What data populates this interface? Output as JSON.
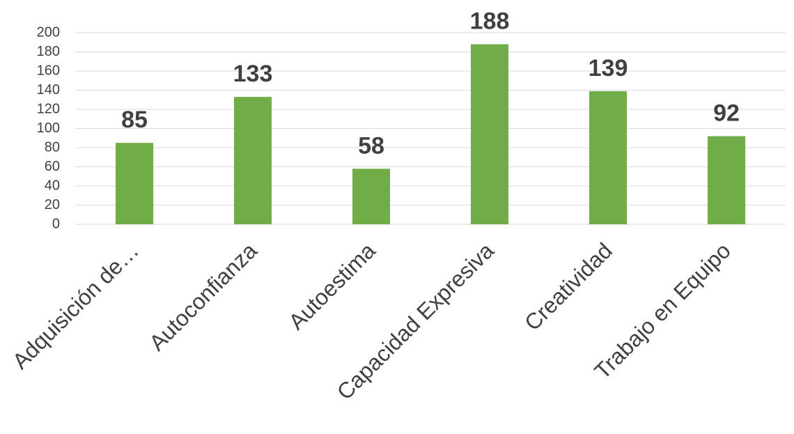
{
  "chart_data": {
    "type": "bar",
    "categories": [
      "Adquisición de…",
      "Autoconfianza",
      "Autoestima",
      "Capacidad Expresiva",
      "Creatividad",
      "Trabajo en Equipo"
    ],
    "values": [
      85,
      133,
      58,
      188,
      139,
      92
    ],
    "data_labels": [
      "85",
      "133",
      "58",
      "188",
      "139",
      "92"
    ],
    "title": "",
    "xlabel": "",
    "ylabel": "",
    "ylim": [
      0,
      200
    ],
    "yticks": [
      0,
      20,
      40,
      60,
      80,
      100,
      120,
      140,
      160,
      180,
      200
    ],
    "grid": true,
    "legend": "none",
    "bar_color": "#70ad47"
  }
}
